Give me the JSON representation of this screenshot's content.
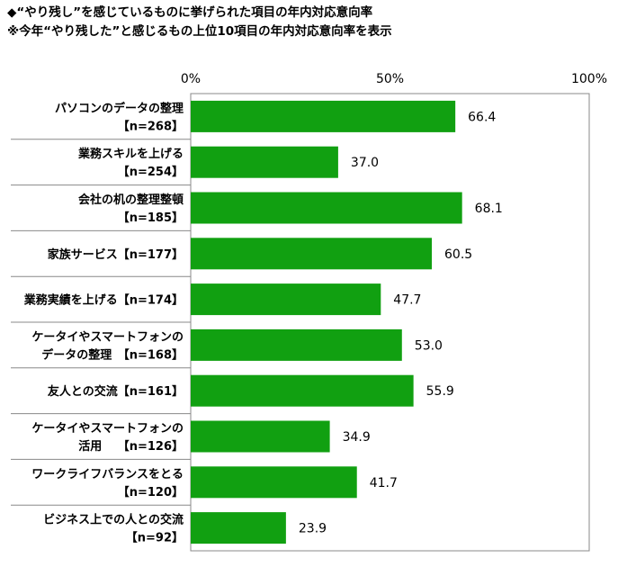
{
  "header": {
    "line1": "◆“やり残し”を感じているものに挙げられた項目の年内対応意向率",
    "line2": "※今年“やり残した”と感じるもの上位10項目の年内対応意向率を表示"
  },
  "chart_data": {
    "type": "bar",
    "orientation": "horizontal",
    "xlim": [
      0,
      100
    ],
    "ticks": [
      "0%",
      "50%",
      "100%"
    ],
    "categories": [
      [
        "パソコンのデータの整理",
        "【n=268】"
      ],
      [
        "業務スキルを上げる",
        "【n=254】"
      ],
      [
        "会社の机の整理整頓",
        "【n=185】"
      ],
      [
        "家族サービス【n=177】"
      ],
      [
        "業務実績を上げる【n=174】"
      ],
      [
        "ケータイやスマートフォンの",
        "データの整理　【n=168】"
      ],
      [
        "友人との交流【n=161】"
      ],
      [
        "ケータイやスマートフォンの",
        "活用　 【n=126】"
      ],
      [
        "ワークライフバランスをとる",
        "【n=120】"
      ],
      [
        "ビジネス上での人との交流",
        "【n=92】"
      ]
    ],
    "values": [
      66.4,
      37.0,
      68.1,
      60.5,
      47.7,
      53.0,
      55.9,
      34.9,
      41.7,
      23.9
    ],
    "value_labels": [
      "66.4",
      "37.0",
      "68.1",
      "60.5",
      "47.7",
      "53.0",
      "55.9",
      "34.9",
      "41.7",
      "23.9"
    ],
    "bar_color": "#11a011",
    "grid": false
  }
}
